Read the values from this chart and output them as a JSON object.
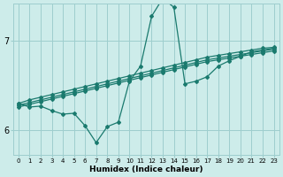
{
  "title": "",
  "xlabel": "Humidex (Indice chaleur)",
  "ylabel": "",
  "bg_color": "#cdecea",
  "grid_color": "#9ecece",
  "line_color": "#1a7a6e",
  "xlim": [
    -0.5,
    23.5
  ],
  "ylim": [
    5.72,
    7.42
  ],
  "yticks": [
    6,
    7
  ],
  "xticks": [
    0,
    1,
    2,
    3,
    4,
    5,
    6,
    7,
    8,
    9,
    10,
    11,
    12,
    13,
    14,
    15,
    16,
    17,
    18,
    19,
    20,
    21,
    22,
    23
  ],
  "series_jagged": [
    6.3,
    6.26,
    6.27,
    6.22,
    6.18,
    6.19,
    6.05,
    5.86,
    6.04,
    6.09,
    6.55,
    6.72,
    7.28,
    7.48,
    7.38,
    6.52,
    6.55,
    6.6,
    6.72,
    6.78,
    6.83,
    6.88,
    6.9,
    6.92
  ],
  "series_linear": [
    [
      6.3,
      6.34,
      6.37,
      6.4,
      6.43,
      6.46,
      6.49,
      6.52,
      6.55,
      6.58,
      6.61,
      6.64,
      6.67,
      6.7,
      6.73,
      6.76,
      6.79,
      6.82,
      6.84,
      6.86,
      6.88,
      6.9,
      6.92,
      6.93
    ],
    [
      6.28,
      6.31,
      6.34,
      6.37,
      6.4,
      6.43,
      6.46,
      6.49,
      6.52,
      6.55,
      6.58,
      6.61,
      6.64,
      6.67,
      6.7,
      6.73,
      6.76,
      6.79,
      6.81,
      6.83,
      6.85,
      6.87,
      6.89,
      6.91
    ],
    [
      6.26,
      6.29,
      6.32,
      6.35,
      6.38,
      6.41,
      6.44,
      6.47,
      6.5,
      6.53,
      6.56,
      6.59,
      6.62,
      6.65,
      6.68,
      6.71,
      6.74,
      6.77,
      6.79,
      6.81,
      6.83,
      6.85,
      6.87,
      6.89
    ]
  ],
  "marker": "D",
  "markersize": 2.0,
  "linewidth": 0.9
}
